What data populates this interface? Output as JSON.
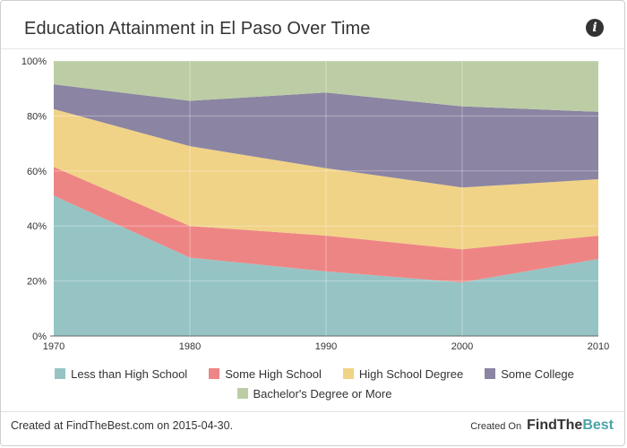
{
  "header": {
    "title": "Education Attainment in El Paso Over Time",
    "info_icon": "info-icon",
    "info_glyph": "i"
  },
  "chart_data": {
    "type": "area",
    "stacked": true,
    "percent": true,
    "x": [
      1970,
      1980,
      1990,
      2000,
      2010
    ],
    "x_tick_labels": [
      "1970",
      "1980",
      "1990",
      "2000",
      "2010"
    ],
    "y_tick_labels": [
      "0%",
      "20%",
      "40%",
      "60%",
      "80%",
      "100%"
    ],
    "ylim": [
      0,
      100
    ],
    "grid": true,
    "legend_position": "bottom",
    "series": [
      {
        "name": "Less than High School",
        "color": "#96c4c4",
        "values": [
          51,
          28.5,
          23.5,
          19.5,
          28
        ]
      },
      {
        "name": "Some High School",
        "color": "#ee8585",
        "values": [
          10.5,
          11.5,
          13,
          12,
          8.5
        ]
      },
      {
        "name": "High School Degree",
        "color": "#f1d387",
        "values": [
          21,
          29,
          24.5,
          22.5,
          20.5
        ]
      },
      {
        "name": "Some College",
        "color": "#8b84a2",
        "values": [
          9,
          16.5,
          27.5,
          29.5,
          24.5
        ]
      },
      {
        "name": "Bachelor's Degree or More",
        "color": "#bccda5",
        "values": [
          8.5,
          14.5,
          11.5,
          16.5,
          18.5
        ]
      }
    ]
  },
  "legend": {
    "row1": [
      "Less than High School",
      "Some High School",
      "High School Degree",
      "Some College"
    ],
    "row2": [
      "Bachelor's Degree or More"
    ]
  },
  "footer": {
    "created_text": "Created at FindTheBest.com on 2015-04-30.",
    "created_on_label": "Created On",
    "brand_part1": "FindThe",
    "brand_part2": "Best"
  }
}
